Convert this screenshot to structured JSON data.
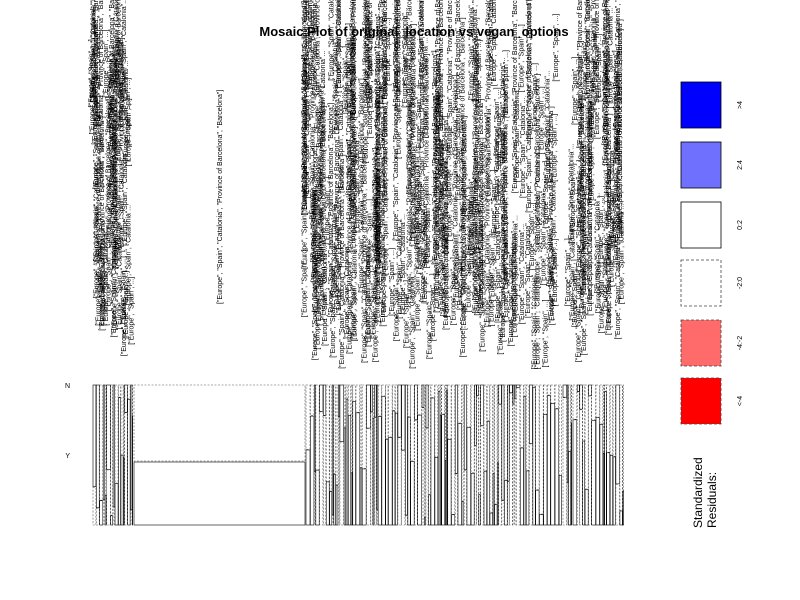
{
  "chart_data": {
    "type": "mosaic",
    "title": "Mosaic Plot of original_location vs vegan_options",
    "x_variable": "original_location",
    "y_variable": "vegan_options",
    "y_levels": [
      "N",
      "Y"
    ],
    "highlight_label": "[\"Europe\", \"Spain\", \"Catalonia\", \"Province of Barcelona\", \"Barcelona\"]",
    "highlight_y_fraction": 0.45,
    "legend": {
      "title": "Standardized\nResiduals:",
      "title_lines": [
        "Standardized",
        "Residuals:"
      ],
      "items": [
        {
          "label": ">4",
          "fill": "#0000ff",
          "dashed": false
        },
        {
          "label": "2:4",
          "fill": "#7070ff",
          "dashed": false
        },
        {
          "label": "0:2",
          "fill": "#ffffff",
          "dashed": false
        },
        {
          "label": "-2:0",
          "fill": "#ffffff",
          "dashed": true
        },
        {
          "label": "-4:-2",
          "fill": "#ff6b6b",
          "dashed": true
        },
        {
          "label": "<-4",
          "fill": "#ff0000",
          "dashed": true
        }
      ]
    },
    "category_label_sample": [
      "[\"Europe\", \"Spain\", \"Catalonia\", \"Province of Barcelona\", \"Barcelona\"]",
      "[\"Europe\", \"Spain\", ...]",
      "[\"Europe\", \"Spain\", \"Catalonia\"..."
    ]
  }
}
